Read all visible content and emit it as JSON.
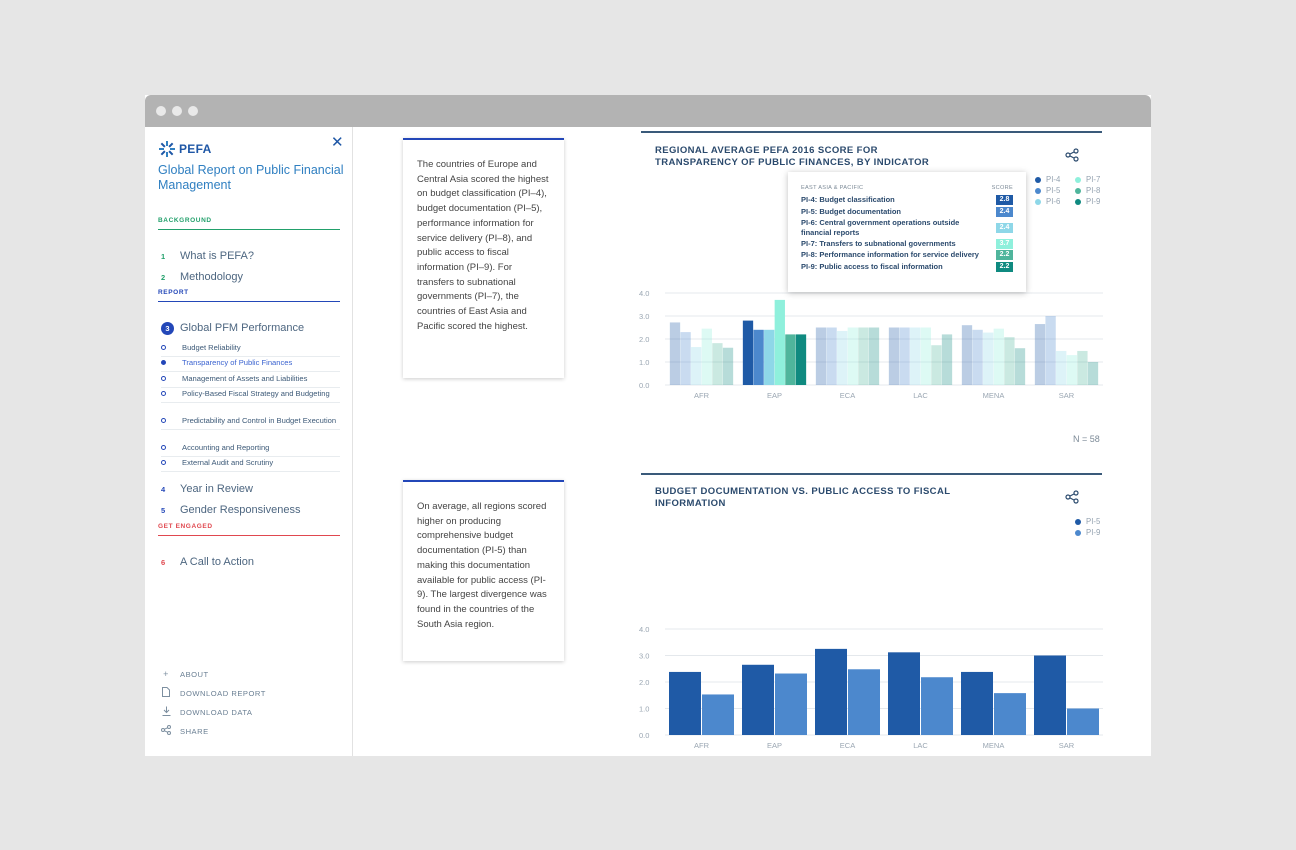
{
  "window": {
    "dots": [
      "dot",
      "dot",
      "dot"
    ]
  },
  "sidebar": {
    "logo": "PEFA",
    "title": "Global Report on Public Financial Management",
    "sections": {
      "background": "BACKGROUND",
      "report": "REPORT",
      "engaged": "GET ENGAGED"
    },
    "nav": [
      {
        "num": "1",
        "label": "What is PEFA?"
      },
      {
        "num": "2",
        "label": "Methodology"
      },
      {
        "num": "3",
        "label": "Global PFM Performance"
      },
      {
        "num": "4",
        "label": "Year in Review"
      },
      {
        "num": "5",
        "label": "Gender Responsiveness"
      },
      {
        "num": "6",
        "label": "A Call to Action"
      }
    ],
    "subitems": [
      {
        "label": "Budget Reliability",
        "active": false
      },
      {
        "label": "Transparency of Public Finances",
        "active": true
      },
      {
        "label": "Management of Assets and Liabilities",
        "active": false
      },
      {
        "label": "Policy-Based Fiscal Strategy and Budgeting",
        "active": false
      },
      {
        "label": "Predictability and Control in Budget Execution",
        "active": false
      },
      {
        "label": "Accounting and Reporting",
        "active": false
      },
      {
        "label": "External Audit and Scrutiny",
        "active": false
      }
    ],
    "footer": [
      "ABOUT",
      "DOWNLOAD REPORT",
      "DOWNLOAD DATA",
      "SHARE"
    ]
  },
  "cards": [
    "The countries of Europe and Central Asia scored the highest on budget classification (PI–4), budget documentation (PI–5), performance information for service delivery (PI–8), and public access to fiscal information (PI–9). For transfers to subnational governments (PI–7), the countries of East Asia and Pacific scored the highest.",
    "On average, all regions scored higher on producing comprehensive budget documentation (PI-5) than making this documentation available for public access (PI-9). The largest divergence was found in the countries of the South Asia region."
  ],
  "tooltip": {
    "region": "EAST ASIA & PACIFIC",
    "score_label": "SCORE",
    "rows": [
      {
        "label": "PI-4: Budget classification",
        "score": "2.8",
        "color": "#1f5aa6"
      },
      {
        "label": "PI-5: Budget documentation",
        "score": "2.4",
        "color": "#4c88cd"
      },
      {
        "label": "PI-6: Central government operations outside financial reports",
        "score": "2.4",
        "color": "#8ed7e8"
      },
      {
        "label": "PI-7: Transfers to subnational governments",
        "score": "3.7",
        "color": "#8ff0dc"
      },
      {
        "label": "PI-8: Performance information for service delivery",
        "score": "2.2",
        "color": "#4fb59c"
      },
      {
        "label": "PI-9: Public access to fiscal information",
        "score": "2.2",
        "color": "#0f8a80"
      }
    ]
  },
  "n_label": "N = 58",
  "chart_data": [
    {
      "type": "bar",
      "title": "REGIONAL AVERAGE PEFA 2016 SCORE FOR TRANSPARENCY OF PUBLIC FINANCES, BY INDICATOR",
      "categories": [
        "AFR",
        "EAP",
        "ECA",
        "LAC",
        "MENA",
        "SAR"
      ],
      "ylim": [
        0,
        4
      ],
      "yticks": [
        "0.0",
        "1.0",
        "2.0",
        "3.0",
        "4.0"
      ],
      "highlighted": "EAP",
      "series": [
        {
          "name": "PI-4",
          "color": "#1f5aa6",
          "values": [
            2.72,
            2.8,
            2.5,
            2.5,
            2.6,
            2.65
          ]
        },
        {
          "name": "PI-5",
          "color": "#4c88cd",
          "values": [
            2.3,
            2.4,
            2.5,
            2.5,
            2.4,
            3.0
          ]
        },
        {
          "name": "PI-6",
          "color": "#8ed7e8",
          "values": [
            1.65,
            2.4,
            2.35,
            2.5,
            2.28,
            1.48
          ]
        },
        {
          "name": "PI-7",
          "color": "#8ff0dc",
          "values": [
            2.45,
            3.7,
            2.5,
            2.5,
            2.45,
            1.3
          ]
        },
        {
          "name": "PI-8",
          "color": "#4fb59c",
          "values": [
            1.82,
            2.2,
            2.5,
            1.73,
            2.08,
            1.48
          ]
        },
        {
          "name": "PI-9",
          "color": "#0f8a80",
          "values": [
            1.62,
            2.2,
            2.5,
            2.2,
            1.6,
            1.0
          ]
        }
      ]
    },
    {
      "type": "bar",
      "title": "BUDGET DOCUMENTATION VS. PUBLIC ACCESS TO FISCAL INFORMATION",
      "categories": [
        "AFR",
        "EAP",
        "ECA",
        "LAC",
        "MENA",
        "SAR"
      ],
      "ylim": [
        0,
        4
      ],
      "yticks": [
        "0.0",
        "1.0",
        "2.0",
        "3.0",
        "4.0"
      ],
      "series": [
        {
          "name": "PI-5",
          "color": "#1f5aa6",
          "values": [
            2.38,
            2.65,
            3.25,
            3.12,
            2.38,
            3.0
          ]
        },
        {
          "name": "PI-9",
          "color": "#4c88cd",
          "values": [
            1.53,
            2.32,
            2.48,
            2.18,
            1.58,
            1.0
          ]
        }
      ]
    }
  ]
}
